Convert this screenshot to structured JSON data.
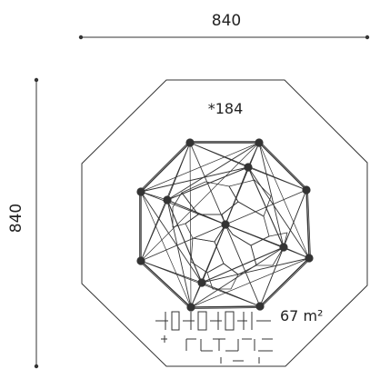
{
  "dimensions": {
    "width_label": "840",
    "height_label": "840"
  },
  "product": {
    "code_label": "*184"
  },
  "area": {
    "label": "67 m²"
  },
  "colors": {
    "line": "#333333",
    "node": "#333333",
    "background": "#ffffff"
  }
}
